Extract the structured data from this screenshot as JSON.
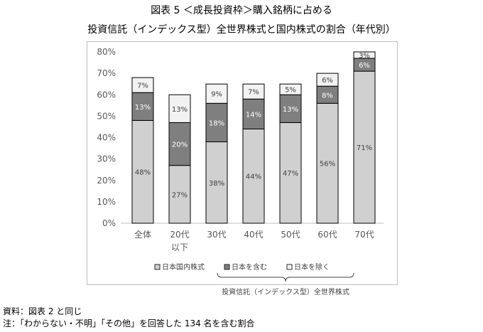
{
  "title": "図表 5 ＜成長投資枠＞購入銘柄に占める",
  "subtitle": "投資信託（インデックス型）全世界株式と国内株式の割合（年代別）",
  "chart_data": {
    "type": "bar",
    "stacked": true,
    "categories": [
      "全体",
      "20代以下",
      "30代",
      "40代",
      "50代",
      "60代",
      "70代"
    ],
    "category_lines": [
      [
        "全体"
      ],
      [
        "20代",
        "以下"
      ],
      [
        "30代"
      ],
      [
        "40代"
      ],
      [
        "50代"
      ],
      [
        "60代"
      ],
      [
        "70代"
      ]
    ],
    "series": [
      {
        "name": "日本国内株式",
        "color": "#d0d0d0",
        "values": [
          48,
          27,
          38,
          44,
          47,
          56,
          71
        ],
        "labels": [
          "48%",
          "27%",
          "38%",
          "44%",
          "47%",
          "56%",
          "71%"
        ]
      },
      {
        "name": "日本を含む",
        "color": "#7f7f7f",
        "values": [
          13,
          20,
          18,
          14,
          13,
          8,
          6
        ],
        "labels": [
          "13%",
          "20%",
          "18%",
          "14%",
          "13%",
          "8%",
          "6%"
        ]
      },
      {
        "name": "日本を除く",
        "color": "#f2f2f2",
        "values": [
          7,
          13,
          9,
          7,
          5,
          6,
          3
        ],
        "labels": [
          "7%",
          "13%",
          "9%",
          "7%",
          "5%",
          "6%",
          "3%"
        ]
      }
    ],
    "ylim": [
      0,
      80
    ],
    "yticks": [
      "0%",
      "10%",
      "20%",
      "30%",
      "40%",
      "50%",
      "60%",
      "70%",
      "80%"
    ],
    "grid": false,
    "legend": [
      "日本国内株式",
      "日本を含む",
      "日本を除く"
    ],
    "legend_group_label": "投資信託（インデックス型）全世界株式"
  },
  "notes": {
    "source": "資料：図表 2 と同じ",
    "note": "注：「わからない・不明」「その他」を回答した 134 名を含む割合"
  }
}
